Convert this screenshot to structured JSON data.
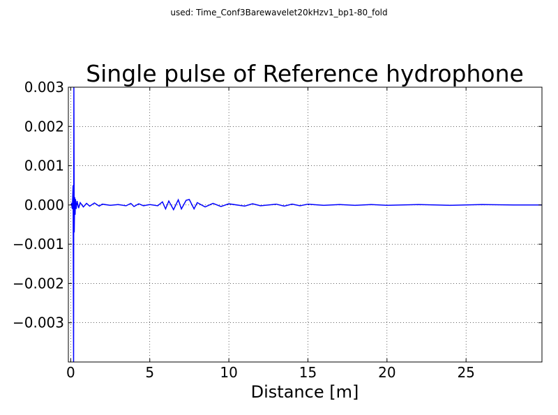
{
  "chart_data": {
    "type": "line",
    "suptitle": "used: Time_Conf3Barewavelet20kHzv1_bp1-80_fold",
    "title": "Single pulse of Reference hydrophone",
    "xlabel": "Distance [m]",
    "ylabel": "",
    "xlim": [
      -0.15,
      29.8
    ],
    "ylim": [
      -0.004,
      0.003
    ],
    "xticks": [
      0,
      5,
      10,
      15,
      20,
      25
    ],
    "xtick_labels": [
      "0",
      "5",
      "10",
      "15",
      "20",
      "25"
    ],
    "yticks": [
      0.003,
      0.002,
      0.001,
      0.0,
      -0.001,
      -0.002,
      -0.003
    ],
    "ytick_labels": [
      "0.003",
      "0.002",
      "0.001",
      "0.000",
      "−0.001",
      "−0.002",
      "−0.003"
    ],
    "grid": true,
    "series": [
      {
        "name": "",
        "color": "#0000ff",
        "x": [
          0.0,
          0.05,
          0.1,
          0.15,
          0.18,
          0.2,
          0.22,
          0.25,
          0.28,
          0.3,
          0.35,
          0.4,
          0.5,
          0.6,
          0.8,
          1.0,
          1.2,
          1.5,
          1.8,
          2.0,
          2.5,
          3.0,
          3.5,
          3.8,
          4.0,
          4.3,
          4.6,
          5.0,
          5.5,
          5.8,
          6.0,
          6.2,
          6.5,
          6.8,
          7.0,
          7.3,
          7.5,
          7.8,
          8.0,
          8.5,
          9.0,
          9.5,
          10.0,
          11.0,
          11.5,
          12.0,
          13.0,
          13.5,
          14.0,
          14.5,
          15.0,
          16.0,
          17.0,
          18.0,
          19.0,
          20.0,
          22.0,
          24.0,
          26.0,
          28.0,
          29.8
        ],
        "y": [
          0.0,
          3e-05,
          -0.0001,
          0.0005,
          -0.004,
          0.003,
          -0.0007,
          0.0002,
          -0.00025,
          0.00015,
          -0.0001,
          0.0001,
          -8e-05,
          6e-05,
          -5e-05,
          4e-05,
          -3e-05,
          5e-05,
          -3e-05,
          2e-05,
          -1e-05,
          1e-05,
          -2e-05,
          4e-05,
          -4e-05,
          3e-05,
          -2e-05,
          1e-05,
          -2e-05,
          8e-05,
          -0.0001,
          0.0001,
          -0.00012,
          0.00013,
          -0.0001,
          0.00012,
          0.00014,
          -0.0001,
          6e-05,
          -5e-05,
          4e-05,
          -4e-05,
          3e-05,
          -3e-05,
          3e-05,
          -2e-05,
          2e-05,
          -3e-05,
          2e-05,
          -2e-05,
          2e-05,
          -1e-05,
          1e-05,
          -1e-05,
          1e-05,
          -1e-05,
          1e-05,
          -1e-05,
          1e-05,
          0.0,
          0.0
        ]
      }
    ]
  }
}
